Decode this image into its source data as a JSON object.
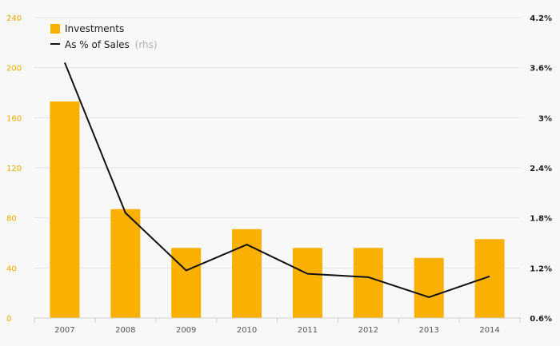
{
  "chart_data": {
    "type": "bar",
    "categories": [
      "2007",
      "2008",
      "2009",
      "2010",
      "2011",
      "2012",
      "2013",
      "2014"
    ],
    "series": [
      {
        "name": "Investments",
        "type": "bar",
        "axis": "left",
        "color": "#f9b000",
        "values": [
          173,
          87,
          56,
          71,
          56,
          56,
          48,
          63
        ]
      },
      {
        "name": "As % of Sales",
        "legend_note": "(rhs)",
        "type": "line",
        "axis": "right",
        "color": "#111111",
        "values": [
          3.66,
          1.86,
          1.17,
          1.48,
          1.13,
          1.09,
          0.85,
          1.1
        ]
      }
    ],
    "left_axis": {
      "ylim": [
        0,
        240
      ],
      "ticks": [
        0,
        40,
        80,
        120,
        160,
        200,
        240
      ],
      "tick_labels": [
        "0",
        "40",
        "80",
        "120",
        "160",
        "200",
        "240"
      ],
      "color": "#f2a900"
    },
    "right_axis": {
      "ylim": [
        0.6,
        4.2
      ],
      "ticks": [
        0.6,
        1.2,
        1.8,
        2.4,
        3.0,
        3.6,
        4.2
      ],
      "tick_labels": [
        "0.6%",
        "1.2%",
        "1.8%",
        "2.4%",
        "3%",
        "3.6%",
        "4.2%"
      ]
    },
    "grid": true,
    "legend_placement": "top-left"
  }
}
